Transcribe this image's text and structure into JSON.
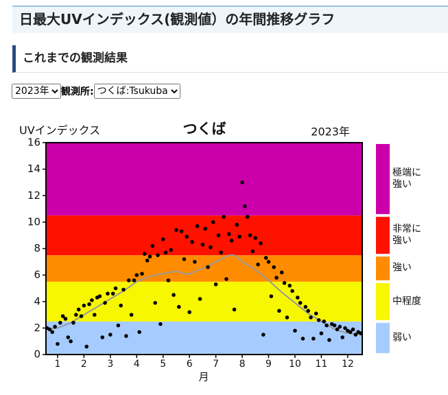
{
  "header": {
    "title": "日最大UVインデックス(観測値）の年間推移グラフ"
  },
  "section": {
    "title": "これまでの観測結果"
  },
  "controls": {
    "year_select": "2023年",
    "station_label": "観測所:",
    "station_select": "つくば:Tsukuba"
  },
  "chart_data": {
    "type": "scatter",
    "title": "つくば",
    "year_label": "2023年",
    "y_label": "UVインデックス",
    "x_label": "月",
    "xlim": [
      0.56,
      12.55
    ],
    "ylim": [
      0,
      16
    ],
    "xticks": [
      1,
      2,
      3,
      4,
      5,
      6,
      7,
      8,
      9,
      10,
      11,
      12
    ],
    "yticks": [
      0,
      2,
      4,
      6,
      8,
      10,
      12,
      14,
      16
    ],
    "bands": [
      {
        "name": "弱い",
        "color": "#a6ccff",
        "from": 0,
        "to": 2.5
      },
      {
        "name": "中程度",
        "color": "#f7f700",
        "from": 2.5,
        "to": 5.5
      },
      {
        "name": "強い",
        "color": "#ff8c00",
        "from": 5.5,
        "to": 7.5
      },
      {
        "name": "非常に強い",
        "color": "#ff1100",
        "from": 7.5,
        "to": 10.5
      },
      {
        "name": "極端に強い",
        "color": "#cc00aa",
        "from": 10.5,
        "to": 16
      }
    ],
    "series": [
      {
        "mode": "line",
        "color": "#999999",
        "x": [
          0.6,
          1,
          1.5,
          2,
          2.5,
          3,
          3.5,
          4,
          4.5,
          5,
          5.5,
          5.8,
          6,
          6.5,
          7,
          7.5,
          7.7,
          8,
          8.5,
          9,
          9.5,
          10,
          10.5,
          11,
          11.5,
          12,
          12.5
        ],
        "values": [
          1.9,
          2.0,
          2.4,
          3.0,
          3.6,
          4.2,
          4.8,
          5.5,
          5.9,
          6.1,
          6.3,
          6.1,
          6.1,
          6.5,
          7.0,
          7.5,
          7.5,
          7.0,
          6.4,
          5.6,
          4.7,
          3.9,
          3.1,
          2.5,
          1.9,
          1.6,
          1.5
        ]
      },
      {
        "mode": "markers",
        "color": "#000000",
        "x": [
          0.6,
          0.7,
          0.8,
          0.9,
          1.0,
          1.1,
          1.2,
          1.3,
          1.4,
          1.5,
          1.6,
          1.7,
          1.8,
          1.9,
          2.0,
          2.1,
          2.2,
          2.3,
          2.4,
          2.5,
          2.6,
          2.7,
          2.8,
          2.9,
          3.0,
          3.1,
          3.2,
          3.3,
          3.4,
          3.5,
          3.6,
          3.7,
          3.8,
          3.9,
          4.0,
          4.1,
          4.2,
          4.3,
          4.4,
          4.5,
          4.6,
          4.7,
          4.8,
          4.9,
          5.0,
          5.1,
          5.2,
          5.3,
          5.4,
          5.5,
          5.6,
          5.7,
          5.8,
          5.9,
          6.0,
          6.1,
          6.2,
          6.3,
          6.4,
          6.5,
          6.6,
          6.7,
          6.8,
          6.9,
          7.0,
          7.1,
          7.2,
          7.3,
          7.4,
          7.5,
          7.6,
          7.7,
          7.8,
          7.9,
          8.0,
          8.1,
          8.2,
          8.3,
          8.4,
          8.5,
          8.6,
          8.7,
          8.8,
          8.9,
          9.0,
          9.1,
          9.2,
          9.3,
          9.4,
          9.5,
          9.6,
          9.7,
          9.8,
          9.9,
          10.0,
          10.1,
          10.2,
          10.3,
          10.4,
          10.5,
          10.6,
          10.7,
          10.8,
          10.9,
          11.0,
          11.1,
          11.2,
          11.3,
          11.4,
          11.5,
          11.6,
          11.7,
          11.8,
          11.9,
          12.0,
          12.1,
          12.2,
          12.3,
          12.4,
          12.5
        ],
        "values": [
          2.0,
          1.9,
          1.7,
          2.1,
          0.8,
          2.4,
          2.9,
          2.7,
          1.3,
          1.0,
          2.4,
          3.0,
          3.4,
          2.9,
          3.7,
          0.6,
          3.8,
          4.1,
          3.0,
          4.3,
          4.4,
          1.3,
          3.9,
          4.6,
          1.5,
          4.6,
          5.0,
          2.2,
          3.7,
          4.9,
          1.4,
          5.6,
          3.0,
          5.6,
          6.0,
          1.7,
          6.1,
          7.6,
          7.1,
          7.4,
          8.2,
          3.9,
          7.5,
          2.3,
          8.7,
          7.7,
          5.6,
          7.9,
          4.5,
          9.4,
          3.6,
          9.3,
          7.2,
          8.9,
          3.2,
          8.5,
          7.0,
          9.7,
          4.2,
          8.3,
          9.5,
          6.6,
          8.1,
          10.0,
          5.3,
          9.0,
          7.7,
          10.4,
          5.7,
          9.1,
          8.6,
          3.4,
          9.8,
          8.9,
          13.0,
          11.2,
          10.4,
          9.0,
          7.8,
          8.8,
          6.8,
          8.4,
          1.5,
          7.3,
          7.0,
          4.4,
          6.6,
          5.8,
          3.3,
          6.2,
          5.4,
          2.8,
          5.2,
          4.8,
          1.8,
          4.3,
          3.9,
          1.2,
          3.6,
          3.3,
          2.8,
          1.2,
          3.1,
          2.6,
          1.6,
          2.5,
          2.2,
          1.1,
          2.3,
          2.2,
          1.9,
          2.1,
          1.3,
          2.0,
          1.8,
          1.7,
          1.9,
          1.5,
          1.7,
          1.6
        ]
      }
    ]
  }
}
